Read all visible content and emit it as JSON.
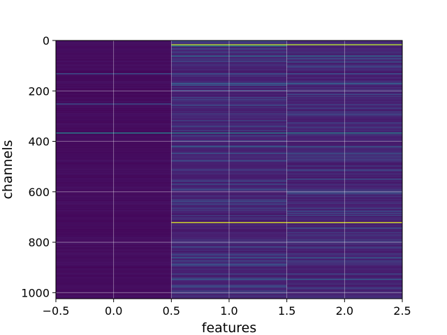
{
  "chart_data": {
    "type": "heatmap",
    "title": "",
    "xlabel": "features",
    "ylabel": "channels",
    "xlim": [
      -0.5,
      2.5
    ],
    "ylim": [
      1024,
      0
    ],
    "x_ticks": [
      -0.5,
      0.0,
      0.5,
      1.0,
      1.5,
      2.0,
      2.5
    ],
    "x_tick_labels": [
      "−0.5",
      "0.0",
      "0.5",
      "1.0",
      "1.5",
      "2.0",
      "2.5"
    ],
    "y_ticks": [
      0,
      200,
      400,
      600,
      800,
      1000
    ],
    "y_tick_labels": [
      "0",
      "200",
      "400",
      "600",
      "800",
      "1000"
    ],
    "grid": true,
    "colormap": "viridis",
    "value_range": [
      0,
      1
    ],
    "columns": [
      {
        "feature": 0,
        "base_level": 0.02
      },
      {
        "feature": 1,
        "base_level": 0.07
      },
      {
        "feature": 2,
        "base_level": 0.07
      }
    ],
    "notable_rows": [
      {
        "channel": 15,
        "features": [
          1,
          2
        ],
        "value": 0.9
      },
      {
        "channel": 20,
        "features": [
          1
        ],
        "value": 0.45
      },
      {
        "channel": 60,
        "features": [
          1,
          2
        ],
        "value": 0.35
      },
      {
        "channel": 130,
        "features": [
          0,
          1,
          2
        ],
        "value": 0.25
      },
      {
        "channel": 170,
        "features": [
          1,
          2
        ],
        "value": 0.3
      },
      {
        "channel": 250,
        "features": [
          0
        ],
        "value": 0.25
      },
      {
        "channel": 365,
        "features": [
          0,
          1,
          2
        ],
        "value": 0.45
      },
      {
        "channel": 420,
        "features": [
          1,
          2
        ],
        "value": 0.3
      },
      {
        "channel": 445,
        "features": [
          1,
          2
        ],
        "value": 0.28
      },
      {
        "channel": 720,
        "features": [
          1,
          2
        ],
        "value": 0.95
      },
      {
        "channel": 860,
        "features": [
          1,
          2
        ],
        "value": 0.3
      },
      {
        "channel": 945,
        "features": [
          1,
          2
        ],
        "value": 0.3
      }
    ]
  }
}
